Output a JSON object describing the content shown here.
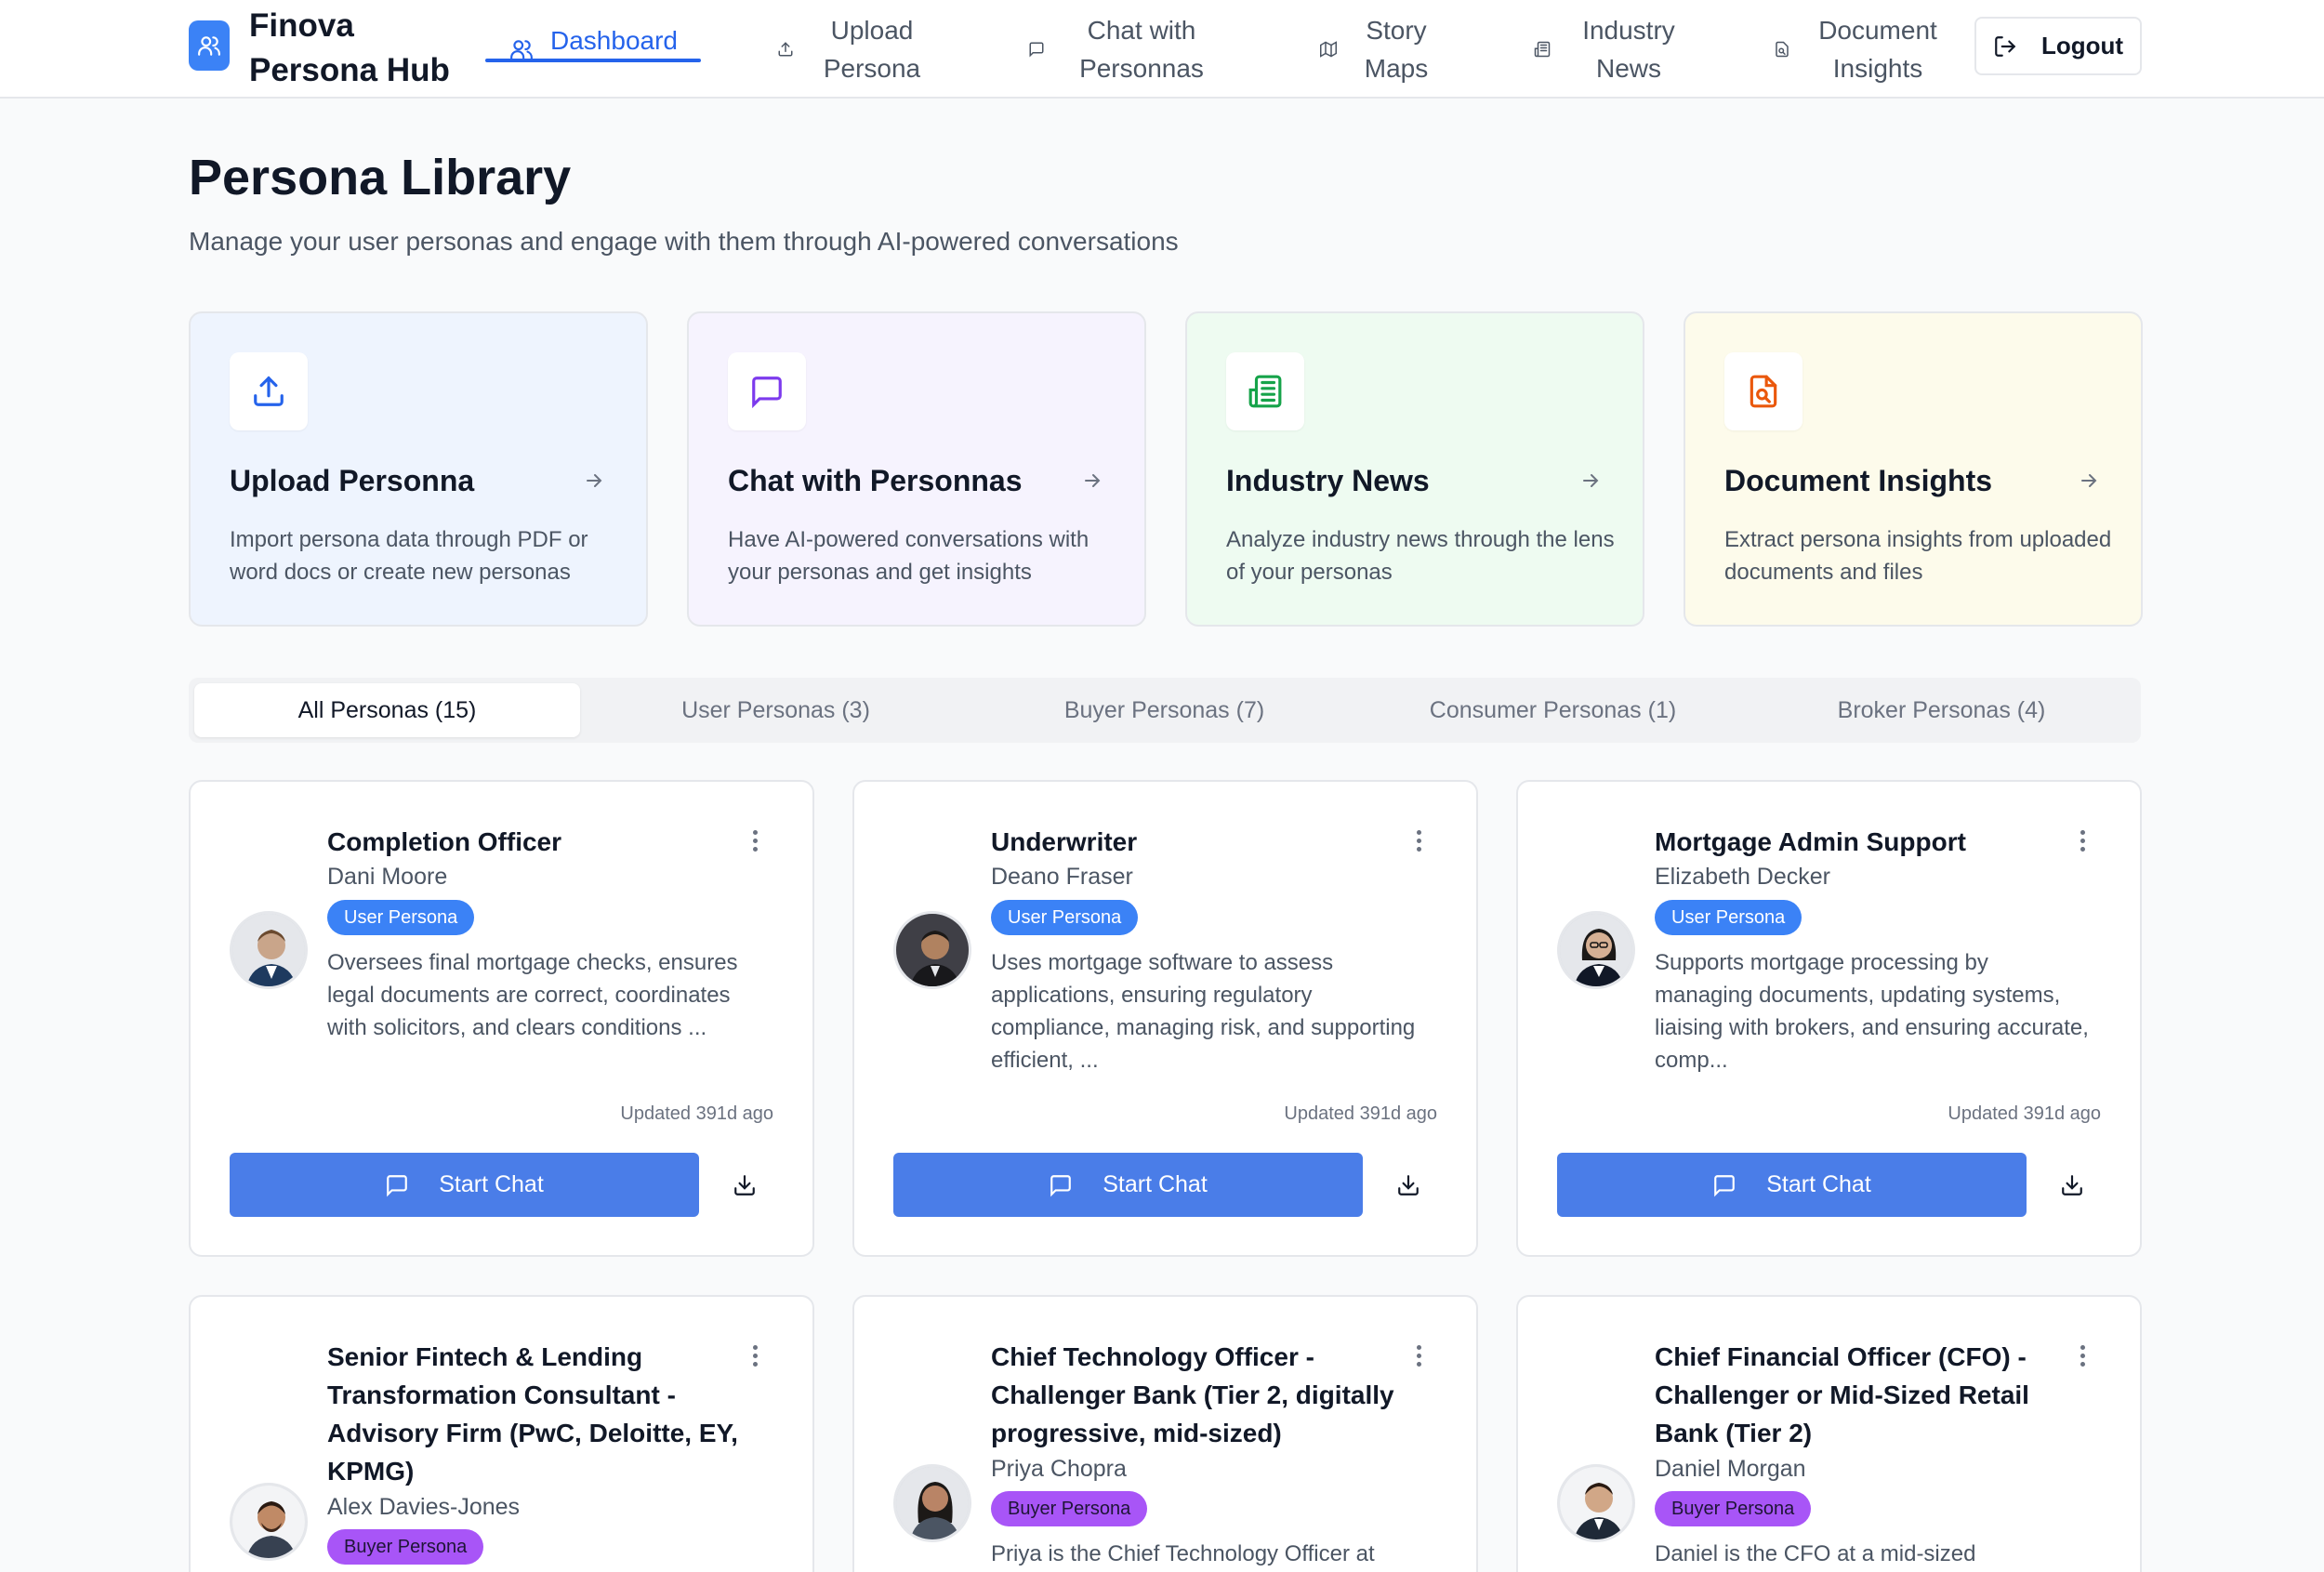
{
  "brand": {
    "name": "Finova Persona Hub",
    "icon": "users-icon",
    "color": "#3b82f6"
  },
  "nav": {
    "items": [
      {
        "label": "Dashboard",
        "icon": "users-icon",
        "active": true
      },
      {
        "label": "Upload Persona",
        "icon": "upload-icon",
        "active": false
      },
      {
        "label": "Chat with Personnas",
        "icon": "message-icon",
        "active": false
      },
      {
        "label": "Story Maps",
        "icon": "map-icon",
        "active": false
      },
      {
        "label": "Industry News",
        "icon": "newspaper-icon",
        "active": false
      },
      {
        "label": "Document Insights",
        "icon": "file-search-icon",
        "active": false
      }
    ],
    "logout_label": "Logout"
  },
  "header": {
    "title": "Persona Library",
    "subtitle": "Manage your user personas and engage with them through AI-powered conversations"
  },
  "features": [
    {
      "title": "Upload Personna",
      "desc": "Import persona data through PDF or word docs or create new personas",
      "icon": "upload-icon",
      "bg": "#eef4fe",
      "accent": "#2563eb"
    },
    {
      "title": "Chat with Personnas",
      "desc": "Have AI-powered conversations with your personas and get insights",
      "icon": "message-icon",
      "bg": "#f6f3fe",
      "accent": "#7c3aed"
    },
    {
      "title": "Industry News",
      "desc": "Analyze industry news through the lens of your personas",
      "icon": "newspaper-icon",
      "bg": "#eefbf1",
      "accent": "#16a34a"
    },
    {
      "title": "Document Insights",
      "desc": "Extract persona insights from uploaded documents and files",
      "icon": "file-search-icon",
      "bg": "#fdfbeb",
      "accent": "#ea580c"
    }
  ],
  "tabs": [
    {
      "label": "All Personas (15)",
      "active": true
    },
    {
      "label": "User Personas (3)",
      "active": false
    },
    {
      "label": "Buyer Personas (7)",
      "active": false
    },
    {
      "label": "Consumer Personas (1)",
      "active": false
    },
    {
      "label": "Broker Personas (4)",
      "active": false
    }
  ],
  "personas": [
    {
      "title": "Completion Officer",
      "name": "Dani Moore",
      "badge": "User Persona",
      "type": "user",
      "desc": "Oversees final mortgage checks, ensures legal documents are correct, coordinates with solicitors, and clears conditions ...",
      "updated": "Updated 391d ago",
      "chat_label": "Start Chat"
    },
    {
      "title": "Underwriter",
      "name": "Deano Fraser",
      "badge": "User Persona",
      "type": "user",
      "desc": "Uses mortgage software to assess applications, ensuring regulatory compliance, managing risk, and supporting efficient, ...",
      "updated": "Updated 391d ago",
      "chat_label": "Start Chat"
    },
    {
      "title": "Mortgage Admin Support",
      "name": "Elizabeth Decker",
      "badge": "User Persona",
      "type": "user",
      "desc": "Supports mortgage processing by managing documents, updating systems, liaising with brokers, and ensuring accurate, comp...",
      "updated": "Updated 391d ago",
      "chat_label": "Start Chat"
    },
    {
      "title": "Senior Fintech & Lending Transformation Consultant - Advisory Firm (PwC, Deloitte, EY, KPMG)",
      "name": "Alex Davies-Jones",
      "badge": "Buyer Persona",
      "type": "buyer",
      "desc": "",
      "updated": "",
      "chat_label": ""
    },
    {
      "title": "Chief Technology Officer - Challenger Bank (Tier 2, digitally progressive, mid-sized)",
      "name": "Priya Chopra",
      "badge": "Buyer Persona",
      "type": "buyer",
      "desc": "Priya is the Chief Technology Officer at",
      "updated": "",
      "chat_label": ""
    },
    {
      "title": "Chief Financial Officer (CFO) - Challenger or Mid-Sized Retail Bank (Tier 2)",
      "name": "Daniel Morgan",
      "badge": "Buyer Persona",
      "type": "buyer",
      "desc": "Daniel is the CFO at a mid-sized",
      "updated": "",
      "chat_label": ""
    }
  ]
}
